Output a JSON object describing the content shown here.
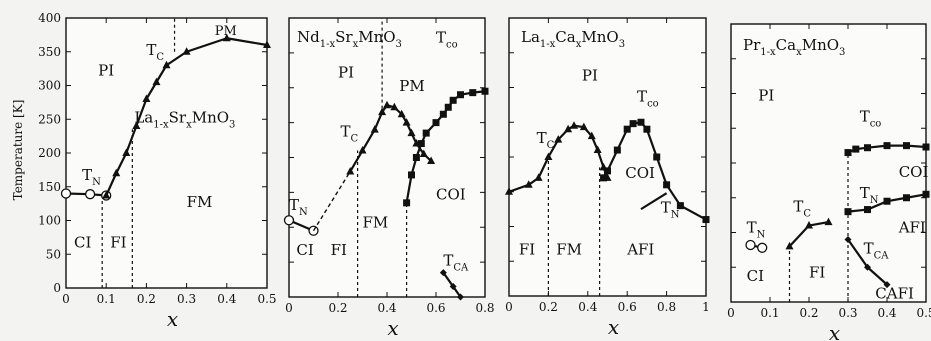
{
  "chart_data": [
    {
      "type": "line",
      "title": "La1-xSrxMnO3",
      "title_parts": [
        [
          "La",
          ""
        ],
        [
          "1-x",
          "sub"
        ],
        [
          "Sr",
          ""
        ],
        [
          "x",
          "sub"
        ],
        [
          "MnO",
          ""
        ],
        [
          "3",
          "sub"
        ]
      ],
      "xlabel": "x",
      "ylabel": "Temperature [K]",
      "xlim": [
        0,
        0.5
      ],
      "ylim": [
        0,
        400
      ],
      "xticks": [
        0,
        0.1,
        0.2,
        0.3,
        0.4,
        0.5
      ],
      "xtick_labels": [
        "0",
        "0.1",
        "0.2",
        "0.3",
        "0.4",
        "0.5"
      ],
      "yticks": [
        0,
        50,
        100,
        150,
        200,
        250,
        300,
        350,
        400
      ],
      "ytick_labels": [
        "0",
        "50",
        "100",
        "150",
        "200",
        "250",
        "300",
        "350",
        "400"
      ],
      "series": [
        {
          "role": "TN",
          "marker": "circle-open",
          "style": "solid",
          "x": [
            0,
            0.06,
            0.1
          ],
          "y": [
            140,
            139,
            137
          ]
        },
        {
          "role": "TC",
          "marker": "triangle",
          "style": "solid",
          "x": [
            0.1,
            0.125,
            0.15,
            0.175,
            0.2,
            0.225,
            0.25,
            0.3,
            0.4,
            0.5
          ],
          "y": [
            137,
            170,
            200,
            240,
            280,
            305,
            330,
            350,
            370,
            360
          ]
        }
      ],
      "boundaries": [
        {
          "x": 0.09,
          "y0": 0,
          "y1": 137
        },
        {
          "x": 0.165,
          "y0": 0,
          "y1": 235
        },
        {
          "x": 0.27,
          "y0": 350,
          "y1": 400
        }
      ],
      "annotations": [
        {
          "parts": [
            [
              "PI",
              ""
            ]
          ],
          "x": 0.08,
          "y": 315,
          "size": 15
        },
        {
          "parts": [
            [
              "PM",
              ""
            ]
          ],
          "x": 0.37,
          "y": 375,
          "size": 13
        },
        {
          "parts": [
            [
              "T",
              ""
            ],
            [
              "C",
              "sub"
            ]
          ],
          "x": 0.2,
          "y": 345,
          "size": 15
        },
        {
          "parts": [
            [
              "La",
              ""
            ],
            [
              "1-x",
              "sub"
            ],
            [
              "Sr",
              ""
            ],
            [
              "x",
              "sub"
            ],
            [
              "MnO",
              ""
            ],
            [
              "3",
              "sub"
            ]
          ],
          "x": 0.17,
          "y": 245,
          "size": 15
        },
        {
          "parts": [
            [
              "T",
              ""
            ],
            [
              "N",
              "sub"
            ]
          ],
          "x": 0.04,
          "y": 160,
          "size": 15
        },
        {
          "parts": [
            [
              "FM",
              ""
            ]
          ],
          "x": 0.3,
          "y": 120,
          "size": 15
        },
        {
          "parts": [
            [
              "CI",
              ""
            ]
          ],
          "x": 0.02,
          "y": 60,
          "size": 15
        },
        {
          "parts": [
            [
              "FI",
              ""
            ]
          ],
          "x": 0.11,
          "y": 60,
          "size": 15
        }
      ]
    },
    {
      "type": "line",
      "title": "Nd1-xSrxMnO3",
      "title_parts": [
        [
          "Nd",
          ""
        ],
        [
          "1-x",
          "sub"
        ],
        [
          "Sr",
          ""
        ],
        [
          "x",
          "sub"
        ],
        [
          "MnO",
          ""
        ],
        [
          "3",
          "sub"
        ]
      ],
      "xlabel": "x",
      "xlim": [
        0,
        0.8
      ],
      "ylim": [
        0,
        400
      ],
      "xticks": [
        0,
        0.2,
        0.4,
        0.6,
        0.8
      ],
      "xtick_labels": [
        "0",
        "0.2",
        "0.4",
        "0.6",
        "0.8"
      ],
      "series": [
        {
          "role": "TN",
          "marker": "circle-open",
          "style": "solid",
          "x": [
            0,
            0.1
          ],
          "y": [
            110,
            95
          ]
        },
        {
          "role": "TN-TC-link",
          "marker": "none",
          "style": "dashed",
          "x": [
            0.1,
            0.25
          ],
          "y": [
            95,
            180
          ]
        },
        {
          "role": "TC",
          "marker": "triangle",
          "style": "solid",
          "x": [
            0.25,
            0.3,
            0.35,
            0.38,
            0.4,
            0.43,
            0.46,
            0.48,
            0.5,
            0.52,
            0.55,
            0.58
          ],
          "y": [
            180,
            210,
            240,
            265,
            275,
            272,
            262,
            250,
            235,
            220,
            205,
            195
          ]
        },
        {
          "role": "Tco",
          "marker": "square",
          "style": "solid",
          "x": [
            0.48,
            0.5,
            0.52,
            0.54,
            0.56,
            0.6,
            0.63,
            0.65,
            0.67,
            0.7,
            0.75,
            0.8
          ],
          "y": [
            135,
            175,
            200,
            220,
            235,
            250,
            262,
            272,
            282,
            290,
            293,
            295
          ]
        },
        {
          "role": "TCA",
          "marker": "diamond",
          "style": "solid",
          "x": [
            0.63,
            0.67,
            0.7
          ],
          "y": [
            35,
            15,
            0
          ]
        }
      ],
      "boundaries": [
        {
          "x": 0.28,
          "y0": 0,
          "y1": 210
        },
        {
          "x": 0.38,
          "y0": 270,
          "y1": 400
        },
        {
          "x": 0.48,
          "y0": 0,
          "y1": 135
        }
      ],
      "annotations": [
        {
          "parts": [
            [
              "PI",
              ""
            ]
          ],
          "x": 0.2,
          "y": 315,
          "size": 15
        },
        {
          "parts": [
            [
              "PM",
              ""
            ]
          ],
          "x": 0.45,
          "y": 295,
          "size": 15
        },
        {
          "parts": [
            [
              "T",
              ""
            ],
            [
              "co",
              "sub"
            ]
          ],
          "x": 0.6,
          "y": 365,
          "size": 15
        },
        {
          "parts": [
            [
              "T",
              ""
            ],
            [
              "C",
              "sub"
            ]
          ],
          "x": 0.21,
          "y": 230,
          "size": 15
        },
        {
          "parts": [
            [
              "COI",
              ""
            ]
          ],
          "x": 0.6,
          "y": 140,
          "size": 15
        },
        {
          "parts": [
            [
              "FM",
              ""
            ]
          ],
          "x": 0.3,
          "y": 100,
          "size": 15
        },
        {
          "parts": [
            [
              "T",
              ""
            ],
            [
              "N",
              "sub"
            ]
          ],
          "x": 0.0,
          "y": 125,
          "size": 15
        },
        {
          "parts": [
            [
              "FI",
              ""
            ]
          ],
          "x": 0.17,
          "y": 60,
          "size": 15
        },
        {
          "parts": [
            [
              "CI",
              ""
            ]
          ],
          "x": 0.03,
          "y": 60,
          "size": 15
        },
        {
          "parts": [
            [
              "T",
              ""
            ],
            [
              "CA",
              "sub"
            ]
          ],
          "x": 0.63,
          "y": 45,
          "size": 15
        }
      ]
    },
    {
      "type": "line",
      "title": "La1-xCaxMnO3",
      "title_parts": [
        [
          "La",
          ""
        ],
        [
          "1-x",
          "sub"
        ],
        [
          "Ca",
          ""
        ],
        [
          "x",
          "sub"
        ],
        [
          "MnO",
          ""
        ],
        [
          "3",
          "sub"
        ]
      ],
      "xlabel": "x",
      "xlim": [
        0,
        1
      ],
      "ylim": [
        0,
        400
      ],
      "xticks": [
        0,
        0.2,
        0.4,
        0.6,
        0.8,
        1
      ],
      "xtick_labels": [
        "0",
        "0.2",
        "0.4",
        "0.6",
        "0.8",
        "1"
      ],
      "series": [
        {
          "role": "TC",
          "marker": "triangle",
          "style": "solid",
          "x": [
            0,
            0.1,
            0.15,
            0.2,
            0.25,
            0.3,
            0.33,
            0.38,
            0.42,
            0.45,
            0.48,
            0.5
          ],
          "y": [
            150,
            160,
            170,
            200,
            225,
            240,
            245,
            243,
            230,
            210,
            185,
            170
          ]
        },
        {
          "role": "Tco",
          "marker": "square",
          "style": "solid",
          "x": [
            0.48,
            0.5,
            0.55,
            0.6,
            0.63,
            0.67,
            0.7,
            0.75,
            0.8,
            0.87,
            1
          ],
          "y": [
            170,
            180,
            210,
            240,
            248,
            250,
            240,
            200,
            160,
            130,
            110
          ]
        },
        {
          "role": "TN",
          "marker": "none",
          "style": "solid",
          "x": [
            0.67,
            0.8
          ],
          "y": [
            125,
            148
          ]
        }
      ],
      "boundaries": [
        {
          "x": 0.2,
          "y0": 0,
          "y1": 200
        },
        {
          "x": 0.46,
          "y0": 0,
          "y1": 185
        }
      ],
      "annotations": [
        {
          "parts": [
            [
              "PI",
              ""
            ]
          ],
          "x": 0.37,
          "y": 310,
          "size": 15
        },
        {
          "parts": [
            [
              "T",
              ""
            ],
            [
              "C",
              "sub"
            ]
          ],
          "x": 0.14,
          "y": 220,
          "size": 15
        },
        {
          "parts": [
            [
              "T",
              ""
            ],
            [
              "co",
              "sub"
            ]
          ],
          "x": 0.65,
          "y": 280,
          "size": 15
        },
        {
          "parts": [
            [
              "COI",
              ""
            ]
          ],
          "x": 0.59,
          "y": 170,
          "size": 15
        },
        {
          "parts": [
            [
              "T",
              ""
            ],
            [
              "N",
              "sub"
            ]
          ],
          "x": 0.77,
          "y": 120,
          "size": 15
        },
        {
          "parts": [
            [
              "FI",
              ""
            ]
          ],
          "x": 0.05,
          "y": 60,
          "size": 15
        },
        {
          "parts": [
            [
              "FM",
              ""
            ]
          ],
          "x": 0.24,
          "y": 60,
          "size": 15
        },
        {
          "parts": [
            [
              "AFI",
              ""
            ]
          ],
          "x": 0.6,
          "y": 60,
          "size": 15
        }
      ]
    },
    {
      "type": "line",
      "title": "Pr1-xCaxMnO3",
      "title_parts": [
        [
          "Pr",
          ""
        ],
        [
          "1-x",
          "sub"
        ],
        [
          "Ca",
          ""
        ],
        [
          "x",
          "sub"
        ],
        [
          "MnO",
          ""
        ],
        [
          "3",
          "sub"
        ]
      ],
      "xlabel": "x",
      "xlim": [
        0,
        0.5
      ],
      "ylim": [
        0,
        400
      ],
      "xticks": [
        0,
        0.1,
        0.2,
        0.3,
        0.4,
        0.5
      ],
      "xtick_labels": [
        "0",
        "0.1",
        "0.2",
        "0.3",
        "0.4",
        "0.5"
      ],
      "series": [
        {
          "role": "TN-lowx",
          "marker": "circle-open",
          "style": "solid",
          "x": [
            0.05,
            0.08
          ],
          "y": [
            82,
            78
          ]
        },
        {
          "role": "TC",
          "marker": "triangle",
          "style": "solid",
          "x": [
            0.15,
            0.2,
            0.25
          ],
          "y": [
            80,
            110,
            115
          ]
        },
        {
          "role": "Tco",
          "marker": "square",
          "style": "solid",
          "x": [
            0.3,
            0.32,
            0.35,
            0.4,
            0.45,
            0.5
          ],
          "y": [
            215,
            220,
            222,
            225,
            225,
            223
          ]
        },
        {
          "role": "TN",
          "marker": "square",
          "style": "solid",
          "x": [
            0.3,
            0.35,
            0.4,
            0.45,
            0.5
          ],
          "y": [
            130,
            133,
            145,
            150,
            155
          ]
        },
        {
          "role": "TCA",
          "marker": "diamond",
          "style": "solid",
          "x": [
            0.3,
            0.35,
            0.4
          ],
          "y": [
            90,
            50,
            25
          ]
        }
      ],
      "boundaries": [
        {
          "x": 0.15,
          "y0": 0,
          "y1": 80
        },
        {
          "x": 0.3,
          "y0": 0,
          "y1": 215
        }
      ],
      "annotations": [
        {
          "parts": [
            [
              "PI",
              ""
            ]
          ],
          "x": 0.07,
          "y": 290,
          "size": 15
        },
        {
          "parts": [
            [
              "T",
              ""
            ],
            [
              "co",
              "sub"
            ]
          ],
          "x": 0.33,
          "y": 260,
          "size": 15
        },
        {
          "parts": [
            [
              "COI",
              ""
            ]
          ],
          "x": 0.43,
          "y": 180,
          "size": 15
        },
        {
          "parts": [
            [
              "T",
              ""
            ],
            [
              "C",
              "sub"
            ]
          ],
          "x": 0.16,
          "y": 130,
          "size": 15
        },
        {
          "parts": [
            [
              "T",
              ""
            ],
            [
              "N",
              "sub"
            ]
          ],
          "x": 0.33,
          "y": 150,
          "size": 15
        },
        {
          "parts": [
            [
              "AFI",
              ""
            ]
          ],
          "x": 0.43,
          "y": 100,
          "size": 15
        },
        {
          "parts": [
            [
              "T",
              ""
            ],
            [
              "N",
              "sub"
            ]
          ],
          "x": 0.04,
          "y": 100,
          "size": 15
        },
        {
          "parts": [
            [
              "T",
              ""
            ],
            [
              "CA",
              "sub"
            ]
          ],
          "x": 0.34,
          "y": 70,
          "size": 15
        },
        {
          "parts": [
            [
              "CI",
              ""
            ]
          ],
          "x": 0.04,
          "y": 30,
          "size": 15
        },
        {
          "parts": [
            [
              "FI",
              ""
            ]
          ],
          "x": 0.2,
          "y": 35,
          "size": 15
        },
        {
          "parts": [
            [
              "CAFI",
              ""
            ]
          ],
          "x": 0.37,
          "y": 5,
          "size": 15
        }
      ]
    }
  ]
}
